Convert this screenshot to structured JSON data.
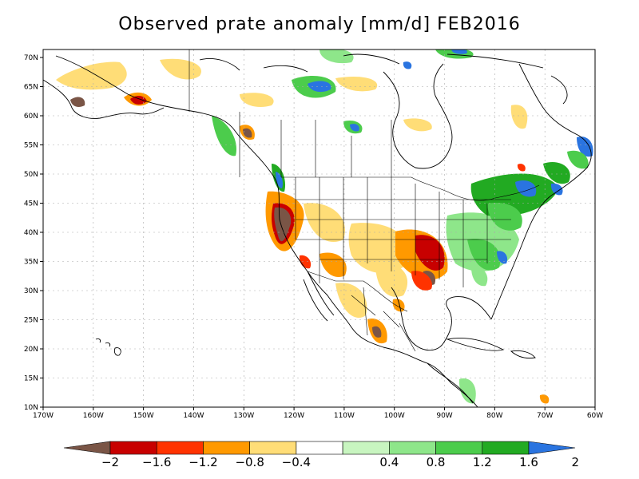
{
  "title": "Observed prate anomaly [mm/d] FEB2016",
  "map": {
    "lat_labels": [
      "70N",
      "65N",
      "60N",
      "55N",
      "50N",
      "45N",
      "40N",
      "35N",
      "30N",
      "25N",
      "20N",
      "15N",
      "10N"
    ],
    "lon_labels": [
      "170W",
      "160W",
      "150W",
      "140W",
      "130W",
      "120W",
      "110W",
      "100W",
      "90W",
      "80W",
      "70W",
      "60W"
    ],
    "land_color": "#ffffff",
    "border_color": "#000000",
    "grid_color": "#aaaaaa"
  },
  "colorbar": {
    "tick_labels": [
      "-2",
      "-1.6",
      "-1.2",
      "-0.8",
      "-0.4",
      "0.4",
      "0.8",
      "1.2",
      "1.6",
      "2"
    ],
    "colors": [
      "#7a5546",
      "#c80000",
      "#ff3300",
      "#ff9900",
      "#ffdd77",
      "#ffffff",
      "#c8f5c0",
      "#8ee68a",
      "#4ccc4c",
      "#22aa22",
      "#2a74e0"
    ]
  },
  "anomaly_regions": [
    {
      "name": "alaska-south-coast",
      "color": "#c80000"
    },
    {
      "name": "alaska-dry",
      "color": "#ffdd77"
    },
    {
      "name": "nw-canada-dry",
      "color": "#ffdd77"
    },
    {
      "name": "bc-coast-brown",
      "color": "#7a5546"
    },
    {
      "name": "hudson-wet-blue",
      "color": "#2a74e0"
    },
    {
      "name": "california-brown",
      "color": "#7a5546"
    },
    {
      "name": "california-red",
      "color": "#c80000"
    },
    {
      "name": "southwest-orange",
      "color": "#ff9900"
    },
    {
      "name": "plains-dry",
      "color": "#ffdd77"
    },
    {
      "name": "mid-south-red",
      "color": "#c80000"
    },
    {
      "name": "lower-miss-brown",
      "color": "#7a5546"
    },
    {
      "name": "mexico-orange",
      "color": "#ff9900"
    },
    {
      "name": "mexico-brown",
      "color": "#7a5546"
    },
    {
      "name": "northeast-green",
      "color": "#22aa22"
    },
    {
      "name": "northeast-blue",
      "color": "#2a74e0"
    },
    {
      "name": "southeast-green",
      "color": "#4ccc4c"
    },
    {
      "name": "gulf-st-lawrence-blue",
      "color": "#2a74e0"
    },
    {
      "name": "caribbean-green",
      "color": "#8ee68a"
    }
  ]
}
